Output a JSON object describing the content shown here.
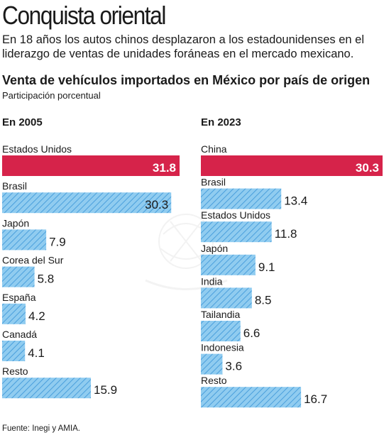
{
  "header": {
    "title": "Conquista oriental",
    "subtitle": "En 18 años los autos chinos desplazaron a los estadounidenses en el liderazgo de ventas de unidades foráneas en el mercado mexicano."
  },
  "chart_data": [
    {
      "type": "bar",
      "orientation": "horizontal",
      "title": "Venta de vehículos importados en México por país de origen",
      "subtitle": "Participación porcentual",
      "panel_title": "En 2005",
      "categories": [
        "Estados Unidos",
        "Brasil",
        "Japón",
        "Corea del Sur",
        "España",
        "Canadá",
        "Resto"
      ],
      "values": [
        31.8,
        30.3,
        7.9,
        5.8,
        4.2,
        4.1,
        15.9
      ],
      "highlight_index": 0
    },
    {
      "type": "bar",
      "orientation": "horizontal",
      "title": "Venta de vehículos importados en México por país de origen",
      "subtitle": "Participación porcentual",
      "panel_title": "En 2023",
      "categories": [
        "China",
        "Brasil",
        "Estados Unidos",
        "Japón",
        "India",
        "Tailandia",
        "Indonesia",
        "Resto"
      ],
      "values": [
        30.3,
        13.4,
        11.8,
        9.1,
        8.5,
        6.6,
        3.6,
        16.7
      ],
      "highlight_index": 0
    }
  ],
  "colors": {
    "highlight": "#d6234a",
    "bar_fill": "#90ccf0",
    "bar_hatch": "#4a9fdc",
    "text": "#1a1a1a"
  },
  "footer": {
    "source": "Fuente: Inegi y AMIA."
  }
}
